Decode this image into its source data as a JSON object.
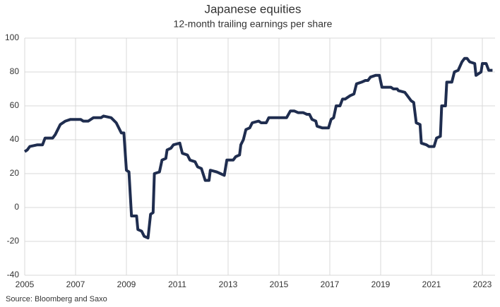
{
  "chart_data": {
    "type": "line",
    "title": "Japanese equities",
    "subtitle": "12-month trailing earnings per share",
    "source": "Source: Bloomberg and Saxo",
    "xlim": [
      2005,
      2023.5
    ],
    "xticks": [
      2005,
      2007,
      2009,
      2011,
      2013,
      2015,
      2017,
      2019,
      2021,
      2023
    ],
    "ylim": [
      -40,
      100
    ],
    "yticks": [
      -40,
      -20,
      0,
      20,
      40,
      60,
      80,
      100
    ],
    "grid": true,
    "x": [
      2005.0,
      2005.1,
      2005.2,
      2005.5,
      2005.7,
      2005.8,
      2006.1,
      2006.2,
      2006.4,
      2006.6,
      2006.8,
      2007.0,
      2007.2,
      2007.3,
      2007.5,
      2007.7,
      2008.0,
      2008.1,
      2008.4,
      2008.6,
      2008.8,
      2008.9,
      2009.0,
      2009.1,
      2009.2,
      2009.4,
      2009.45,
      2009.6,
      2009.7,
      2009.85,
      2009.95,
      2010.05,
      2010.1,
      2010.3,
      2010.4,
      2010.55,
      2010.6,
      2010.75,
      2010.85,
      2011.1,
      2011.2,
      2011.4,
      2011.5,
      2011.7,
      2011.8,
      2011.95,
      2012.1,
      2012.25,
      2012.3,
      2012.55,
      2012.7,
      2012.85,
      2012.95,
      2013.2,
      2013.3,
      2013.45,
      2013.5,
      2013.6,
      2013.7,
      2013.85,
      2013.95,
      2014.2,
      2014.3,
      2014.5,
      2014.6,
      2014.9,
      2015.1,
      2015.3,
      2015.45,
      2015.6,
      2015.75,
      2015.95,
      2016.1,
      2016.2,
      2016.3,
      2016.45,
      2016.5,
      2016.7,
      2016.95,
      2017.05,
      2017.15,
      2017.25,
      2017.4,
      2017.5,
      2017.6,
      2017.8,
      2017.95,
      2018.05,
      2018.25,
      2018.4,
      2018.5,
      2018.6,
      2018.8,
      2018.95,
      2019.05,
      2019.4,
      2019.5,
      2019.65,
      2019.7,
      2019.95,
      2020.05,
      2020.2,
      2020.3,
      2020.4,
      2020.55,
      2020.6,
      2020.8,
      2020.9,
      2021.1,
      2021.2,
      2021.35,
      2021.4,
      2021.55,
      2021.6,
      2021.8,
      2021.9,
      2022.05,
      2022.2,
      2022.3,
      2022.4,
      2022.5,
      2022.7,
      2022.75,
      2022.85,
      2022.95,
      2023.0,
      2023.15,
      2023.25,
      2023.4
    ],
    "series": [
      {
        "color": "#1f2d4f",
        "values": [
          33,
          34,
          36,
          37,
          37,
          41,
          41,
          43,
          49,
          51,
          52,
          52,
          52,
          51,
          51,
          53,
          53,
          54,
          53,
          50,
          44,
          44,
          22,
          21,
          -5,
          -5,
          -13,
          -14,
          -17,
          -18,
          -4,
          -3,
          20,
          21,
          28,
          29,
          34,
          35,
          37,
          38,
          32,
          31,
          28,
          27,
          24,
          23,
          16,
          16,
          22,
          21,
          20,
          19,
          28,
          28,
          30,
          31,
          37,
          40,
          46,
          47,
          50,
          51,
          50,
          50,
          53,
          53,
          53,
          53,
          57,
          57,
          56,
          56,
          55,
          55,
          52,
          51,
          48,
          47,
          47,
          52,
          53,
          60,
          60,
          64,
          64,
          66,
          67,
          73,
          74,
          75,
          75,
          77,
          78,
          78,
          71,
          71,
          70,
          70,
          69,
          68,
          66,
          63,
          62,
          50,
          49,
          38,
          37,
          36,
          36,
          41,
          42,
          60,
          60,
          74,
          74,
          80,
          81,
          86,
          88,
          88,
          86,
          85,
          78,
          79,
          80,
          85,
          85,
          81,
          81
        ]
      }
    ]
  }
}
